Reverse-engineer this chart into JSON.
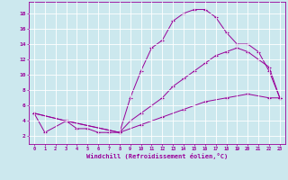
{
  "xlabel": "Windchill (Refroidissement éolien,°C)",
  "xlim": [
    -0.5,
    23.5
  ],
  "ylim": [
    1,
    19.5
  ],
  "xticks": [
    0,
    1,
    2,
    3,
    4,
    5,
    6,
    7,
    8,
    9,
    10,
    11,
    12,
    13,
    14,
    15,
    16,
    17,
    18,
    19,
    20,
    21,
    22,
    23
  ],
  "yticks": [
    2,
    4,
    6,
    8,
    10,
    12,
    14,
    16,
    18
  ],
  "bg_color": "#cce8ee",
  "line_color": "#990099",
  "grid_color": "#ffffff",
  "line1_x": [
    0,
    1,
    3,
    4,
    5,
    6,
    7,
    8,
    9,
    10,
    11,
    12,
    13,
    14,
    15,
    16,
    17,
    18,
    19,
    20,
    21,
    22,
    23
  ],
  "line1_y": [
    5,
    2.5,
    4,
    3,
    3,
    2.5,
    2.5,
    2.5,
    7,
    10.5,
    13.5,
    14.5,
    17,
    18,
    18.5,
    18.5,
    17.5,
    15.5,
    14,
    14,
    13,
    10.5,
    7
  ],
  "line2_x": [
    0,
    3,
    8,
    9,
    10,
    11,
    12,
    13,
    14,
    15,
    16,
    17,
    18,
    19,
    20,
    21,
    22,
    23
  ],
  "line2_y": [
    5,
    4,
    2.5,
    4,
    5,
    6,
    7,
    8.5,
    9.5,
    10.5,
    11.5,
    12.5,
    13,
    13.5,
    13,
    12,
    11,
    7
  ],
  "line3_x": [
    0,
    3,
    8,
    10,
    12,
    14,
    16,
    18,
    20,
    22,
    23
  ],
  "line3_y": [
    5,
    4,
    2.5,
    3.5,
    4.5,
    5.5,
    6.5,
    7,
    7.5,
    7,
    7
  ]
}
